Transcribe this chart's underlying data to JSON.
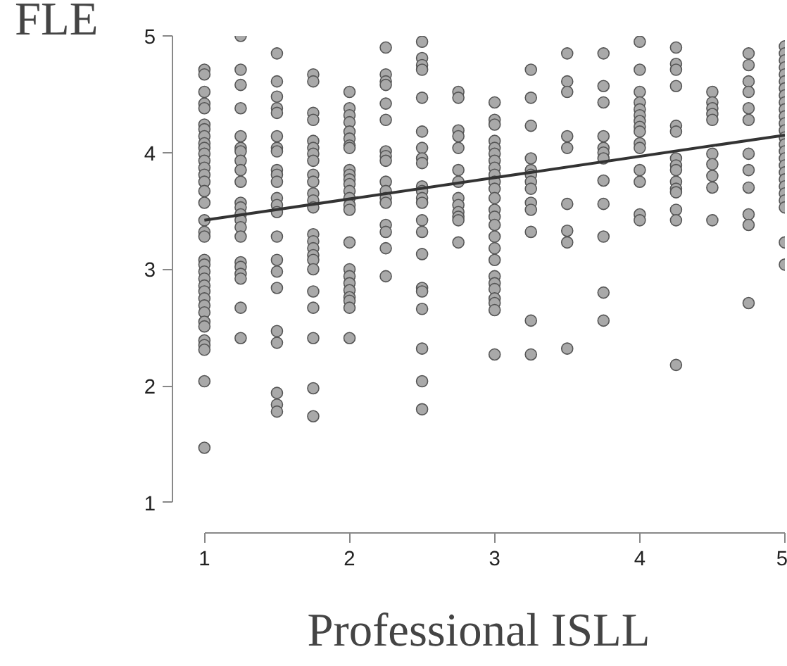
{
  "chart_data": {
    "type": "scatter",
    "xlabel": "Professional ISLL",
    "ylabel": "FLE",
    "xlim": [
      0.78,
      5
    ],
    "ylim": [
      0.74,
      5
    ],
    "xticks": [
      1,
      2,
      3,
      4,
      5
    ],
    "yticks": [
      1,
      2,
      3,
      4,
      5
    ],
    "grid": false,
    "series": [
      {
        "type": "scatter",
        "color": "#a9a9a9",
        "marker": "circle",
        "x": [
          1,
          1,
          1,
          1,
          1,
          1,
          1,
          1,
          1,
          1,
          1,
          1,
          1,
          1,
          1,
          1,
          1,
          1,
          1,
          1,
          1,
          1,
          1,
          1,
          1,
          1,
          1,
          1,
          1,
          1,
          1,
          1,
          1,
          1,
          1,
          1,
          1.25,
          1.25,
          1.25,
          1.25,
          1.25,
          1.25,
          1.25,
          1.25,
          1.25,
          1.25,
          1.25,
          1.25,
          1.25,
          1.25,
          1.25,
          1.25,
          1.25,
          1.25,
          1.25,
          1.25,
          1.25,
          1.25,
          1.5,
          1.5,
          1.5,
          1.5,
          1.5,
          1.5,
          1.5,
          1.5,
          1.5,
          1.5,
          1.5,
          1.5,
          1.5,
          1.5,
          1.5,
          1.5,
          1.5,
          1.5,
          1.5,
          1.5,
          1.5,
          1.5,
          1.5,
          1.75,
          1.75,
          1.75,
          1.75,
          1.75,
          1.75,
          1.75,
          1.75,
          1.75,
          1.75,
          1.75,
          1.75,
          1.75,
          1.75,
          1.75,
          1.75,
          1.75,
          1.75,
          1.75,
          1.75,
          1.75,
          1.75,
          1.75,
          1.75,
          2,
          2,
          2,
          2,
          2,
          2,
          2,
          2,
          2,
          2,
          2,
          2,
          2,
          2,
          2,
          2,
          2,
          2,
          2,
          2,
          2,
          2,
          2,
          2,
          2,
          2.25,
          2.25,
          2.25,
          2.25,
          2.25,
          2.25,
          2.25,
          2.25,
          2.25,
          2.25,
          2.25,
          2.25,
          2.25,
          2.25,
          2.25,
          2.25,
          2.25,
          2.5,
          2.5,
          2.5,
          2.5,
          2.5,
          2.5,
          2.5,
          2.5,
          2.5,
          2.5,
          2.5,
          2.5,
          2.5,
          2.5,
          2.5,
          2.5,
          2.5,
          2.5,
          2.5,
          2.5,
          2.5,
          2.5,
          2.75,
          2.75,
          2.75,
          2.75,
          2.75,
          2.75,
          2.75,
          2.75,
          2.75,
          2.75,
          2.75,
          2.75,
          2.75,
          3,
          3,
          3,
          3,
          3,
          3,
          3,
          3,
          3,
          3,
          3,
          3,
          3,
          3,
          3,
          3,
          3,
          3,
          3,
          3,
          3,
          3,
          3,
          3,
          3,
          3.25,
          3.25,
          3.25,
          3.25,
          3.25,
          3.25,
          3.25,
          3.25,
          3.25,
          3.25,
          3.25,
          3.25,
          3.25,
          3.5,
          3.5,
          3.5,
          3.5,
          3.5,
          3.5,
          3.5,
          3.5,
          3.5,
          3.75,
          3.75,
          3.75,
          3.75,
          3.75,
          3.75,
          3.75,
          3.75,
          3.75,
          3.75,
          3.75,
          3.75,
          4,
          4,
          4,
          4,
          4,
          4,
          4,
          4,
          4,
          4,
          4,
          4,
          4,
          4,
          4,
          4.25,
          4.25,
          4.25,
          4.25,
          4.25,
          4.25,
          4.25,
          4.25,
          4.25,
          4.25,
          4.25,
          4.25,
          4.25,
          4.25,
          4.25,
          4.5,
          4.5,
          4.5,
          4.5,
          4.5,
          4.5,
          4.5,
          4.5,
          4.5,
          4.5,
          4.75,
          4.75,
          4.75,
          4.75,
          4.75,
          4.75,
          4.75,
          4.75,
          4.75,
          4.75,
          4.75,
          4.75,
          5,
          5,
          5,
          5,
          5,
          5,
          5,
          5,
          5,
          5,
          5,
          5,
          5,
          5,
          5,
          5,
          5,
          5,
          5,
          5,
          5,
          5,
          5,
          5,
          5,
          5
        ],
        "values": [
          4.71,
          4.67,
          4.52,
          4.42,
          4.38,
          4.24,
          4.2,
          4.14,
          4.08,
          4.04,
          3.99,
          3.93,
          3.87,
          3.81,
          3.75,
          3.67,
          3.57,
          3.42,
          3.32,
          3.28,
          3.08,
          3.04,
          2.98,
          2.92,
          2.86,
          2.81,
          2.75,
          2.69,
          2.63,
          2.55,
          2.51,
          2.39,
          2.35,
          2.31,
          2.04,
          1.47,
          5.0,
          4.71,
          4.58,
          4.38,
          4.14,
          4.04,
          4.01,
          3.93,
          3.85,
          3.75,
          3.57,
          3.53,
          3.47,
          3.42,
          3.36,
          3.28,
          3.06,
          3.02,
          2.96,
          2.92,
          2.67,
          2.41,
          4.85,
          4.61,
          4.48,
          4.38,
          4.34,
          4.14,
          4.04,
          4.01,
          3.85,
          3.81,
          3.75,
          3.61,
          3.55,
          3.49,
          3.28,
          3.08,
          2.98,
          2.84,
          2.47,
          2.37,
          1.94,
          1.84,
          1.78,
          4.67,
          4.61,
          4.34,
          4.28,
          4.1,
          4.04,
          3.99,
          3.93,
          3.81,
          3.75,
          3.65,
          3.59,
          3.53,
          3.3,
          3.24,
          3.18,
          3.12,
          3.08,
          3.0,
          2.81,
          2.67,
          2.41,
          1.98,
          1.74,
          4.52,
          4.38,
          4.32,
          4.26,
          4.18,
          4.12,
          4.06,
          4.04,
          3.85,
          3.81,
          3.77,
          3.73,
          3.67,
          3.61,
          3.55,
          3.51,
          3.23,
          3.0,
          2.94,
          2.88,
          2.82,
          2.76,
          2.73,
          2.67,
          2.41,
          4.9,
          4.67,
          4.61,
          4.58,
          4.42,
          4.28,
          4.01,
          3.97,
          3.93,
          3.75,
          3.67,
          3.61,
          3.57,
          3.38,
          3.32,
          3.18,
          2.94,
          4.95,
          4.81,
          4.75,
          4.71,
          4.47,
          4.18,
          4.04,
          3.95,
          3.91,
          3.71,
          3.67,
          3.61,
          3.57,
          3.42,
          3.32,
          3.13,
          2.84,
          2.81,
          2.66,
          2.32,
          2.04,
          1.8,
          4.52,
          4.47,
          4.19,
          4.14,
          4.04,
          3.85,
          3.75,
          3.61,
          3.55,
          3.49,
          3.45,
          3.42,
          3.23,
          4.43,
          4.28,
          4.24,
          4.1,
          4.04,
          3.99,
          3.93,
          3.87,
          3.81,
          3.75,
          3.69,
          3.61,
          3.51,
          3.45,
          3.38,
          3.28,
          3.18,
          3.08,
          2.94,
          2.88,
          2.83,
          2.75,
          2.71,
          2.65,
          2.27,
          4.71,
          4.47,
          4.23,
          3.95,
          3.85,
          3.81,
          3.75,
          3.69,
          3.57,
          3.51,
          3.32,
          2.56,
          2.27,
          4.85,
          4.61,
          4.52,
          4.14,
          4.04,
          3.56,
          3.33,
          3.23,
          2.32,
          4.85,
          4.57,
          4.43,
          4.14,
          4.04,
          4.0,
          3.95,
          3.76,
          3.56,
          3.28,
          2.8,
          2.56,
          4.95,
          4.71,
          4.52,
          4.43,
          4.37,
          4.32,
          4.27,
          4.22,
          4.18,
          4.08,
          4.04,
          3.85,
          3.75,
          3.47,
          3.42,
          4.9,
          4.76,
          4.71,
          4.57,
          4.23,
          4.18,
          3.95,
          3.89,
          3.85,
          3.75,
          3.69,
          3.66,
          3.51,
          3.42,
          2.18,
          4.52,
          4.43,
          4.38,
          4.33,
          4.28,
          3.99,
          3.9,
          3.8,
          3.7,
          3.42,
          4.85,
          4.75,
          4.61,
          4.52,
          4.38,
          4.28,
          3.99,
          3.85,
          3.7,
          3.47,
          3.38,
          2.71,
          4.91,
          4.85,
          4.79,
          4.73,
          4.67,
          4.61,
          4.55,
          4.49,
          4.43,
          4.37,
          4.31,
          4.25,
          4.19,
          4.13,
          4.07,
          4.01,
          3.95,
          3.89,
          3.83,
          3.77,
          3.71,
          3.65,
          3.59,
          3.53,
          3.23,
          3.04
        ]
      },
      {
        "type": "line",
        "color": "#333333",
        "marker": "none",
        "x": [
          1,
          5
        ],
        "values": [
          3.42,
          4.15
        ]
      }
    ]
  }
}
